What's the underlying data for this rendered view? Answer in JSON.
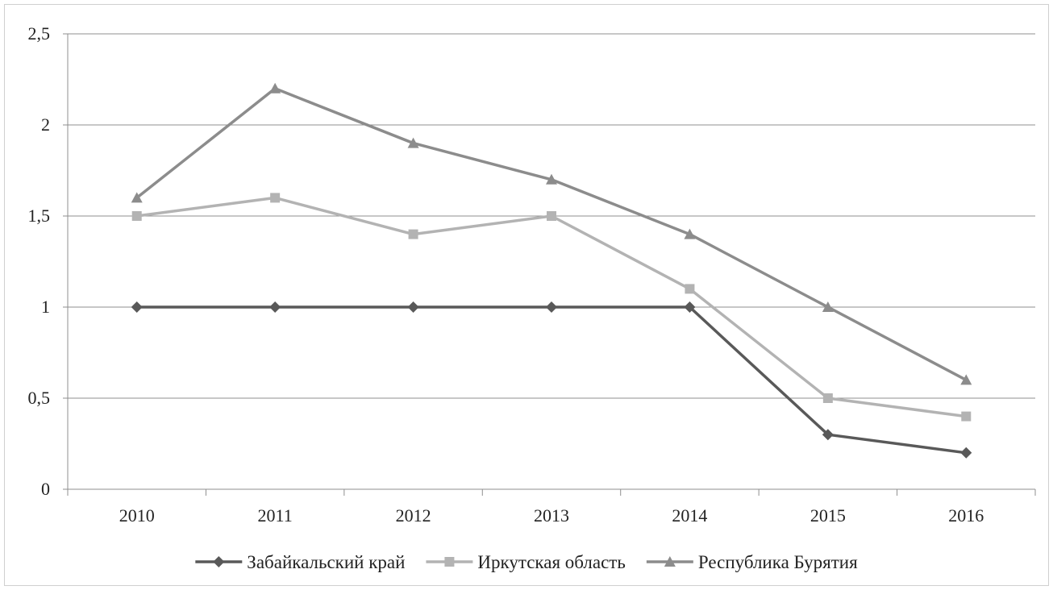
{
  "chart_data": {
    "type": "line",
    "title": "",
    "xlabel": "",
    "ylabel": "",
    "categories": [
      "2010",
      "2011",
      "2012",
      "2013",
      "2014",
      "2015",
      "2016"
    ],
    "ylim": [
      0,
      2.5
    ],
    "yticks": [
      0,
      0.5,
      1,
      1.5,
      2,
      2.5
    ],
    "ytick_labels": [
      "0",
      "0,5",
      "1",
      "1,5",
      "2",
      "2,5"
    ],
    "grid": true,
    "legend_position": "bottom",
    "series": [
      {
        "name": "Забайкальский край",
        "values": [
          1,
          1,
          1,
          1,
          1,
          0.3,
          0.2
        ],
        "color": "#595959",
        "marker": "diamond"
      },
      {
        "name": "Иркутская  область",
        "values": [
          1.5,
          1.6,
          1.4,
          1.5,
          1.1,
          0.5,
          0.4
        ],
        "color": "#b3b3b3",
        "marker": "square"
      },
      {
        "name": "Республика Бурятия",
        "values": [
          1.6,
          2.2,
          1.9,
          1.7,
          1.4,
          1.0,
          0.6
        ],
        "color": "#8c8c8c",
        "marker": "triangle"
      }
    ]
  }
}
